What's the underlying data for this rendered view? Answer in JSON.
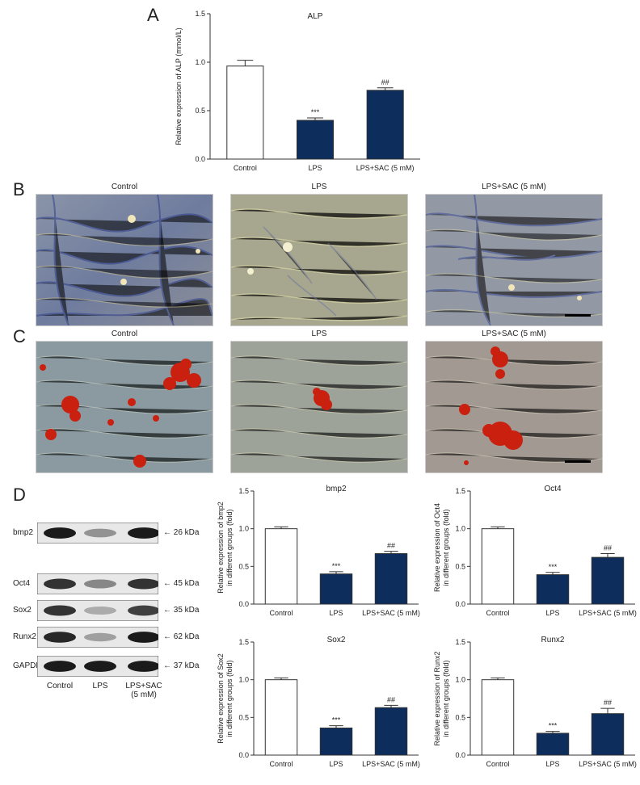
{
  "panels": {
    "A": "A",
    "B": "B",
    "C": "C",
    "D": "D"
  },
  "alp_chart": {
    "title": "ALP",
    "ylabel": "Relative expression of ALP (mmol/L)"
  },
  "micrographs": {
    "row_b": [
      "Control",
      "LPS",
      "LPS+SAC (5 mM)"
    ],
    "row_c": [
      "Control",
      "LPS",
      "LPS+SAC (5 mM)"
    ]
  },
  "western_blot": {
    "bands": [
      {
        "name": "bmp2",
        "kda": "26 kDa"
      },
      {
        "name": "Oct4",
        "kda": "45 kDa"
      },
      {
        "name": "Sox2",
        "kda": "35 kDa"
      },
      {
        "name": "Runx2",
        "kda": "62 kDa"
      },
      {
        "name": "GAPDH",
        "kda": "37 kDa"
      }
    ],
    "lanes": [
      "Control",
      "LPS",
      "LPS+SAC\n(5 mM)"
    ],
    "intensities": [
      [
        0.95,
        0.45,
        0.95
      ],
      [
        0.85,
        0.5,
        0.85
      ],
      [
        0.85,
        0.35,
        0.8
      ],
      [
        0.9,
        0.4,
        0.95
      ],
      [
        0.95,
        0.95,
        0.95
      ]
    ]
  },
  "colors": {
    "control_bar": "#ffffff",
    "treated_bar": "#0d2d5c",
    "axis": "#333333"
  },
  "chart_data": [
    {
      "type": "bar",
      "title": "ALP",
      "ylabel": "Relative expression of ALP (mmol/L)",
      "categories": [
        "Control",
        "LPS",
        "LPS+SAC (5 mM)"
      ],
      "values": [
        0.96,
        0.4,
        0.71
      ],
      "errors": [
        0.06,
        0.025,
        0.025
      ],
      "annotations": [
        "",
        "***",
        "##"
      ],
      "ylim": [
        0,
        1.5
      ],
      "yticks": [
        "0.0",
        "0.5",
        "1.0",
        "1.5"
      ]
    },
    {
      "type": "bar",
      "title": "bmp2",
      "ylabel": "Relative expression of bmp2 in different groups (fold)",
      "categories": [
        "Control",
        "LPS",
        "LPS+SAC (5 mM)"
      ],
      "values": [
        1.0,
        0.4,
        0.67
      ],
      "errors": [
        0.025,
        0.03,
        0.03
      ],
      "annotations": [
        "",
        "***",
        "##"
      ],
      "ylim": [
        0,
        1.5
      ],
      "yticks": [
        "0.0",
        "0.5",
        "1.0",
        "1.5"
      ]
    },
    {
      "type": "bar",
      "title": "Oct4",
      "ylabel": "Relative expression of Oct4 in different groups (fold)",
      "categories": [
        "Control",
        "LPS",
        "LPS+SAC (5 mM)"
      ],
      "values": [
        1.0,
        0.39,
        0.62
      ],
      "errors": [
        0.025,
        0.03,
        0.05
      ],
      "annotations": [
        "",
        "***",
        "##"
      ],
      "ylim": [
        0,
        1.5
      ],
      "yticks": [
        "0.0",
        "0.5",
        "1.0",
        "1.5"
      ]
    },
    {
      "type": "bar",
      "title": "Sox2",
      "ylabel": "Relative expression of Sox2 in different groups (fold)",
      "categories": [
        "Control",
        "LPS",
        "LPS+SAC (5 mM)"
      ],
      "values": [
        1.0,
        0.36,
        0.63
      ],
      "errors": [
        0.025,
        0.03,
        0.03
      ],
      "annotations": [
        "",
        "***",
        "##"
      ],
      "ylim": [
        0,
        1.5
      ],
      "yticks": [
        "0.0",
        "0.5",
        "1.0",
        "1.5"
      ]
    },
    {
      "type": "bar",
      "title": "Runx2",
      "ylabel": "Relative expression of Runx2 in different groups (fold)",
      "categories": [
        "Control",
        "LPS",
        "LPS+SAC (5 mM)"
      ],
      "values": [
        1.0,
        0.29,
        0.55
      ],
      "errors": [
        0.025,
        0.025,
        0.07
      ],
      "annotations": [
        "",
        "***",
        "##"
      ],
      "ylim": [
        0,
        1.5
      ],
      "yticks": [
        "0.0",
        "0.5",
        "1.0",
        "1.5"
      ]
    }
  ]
}
